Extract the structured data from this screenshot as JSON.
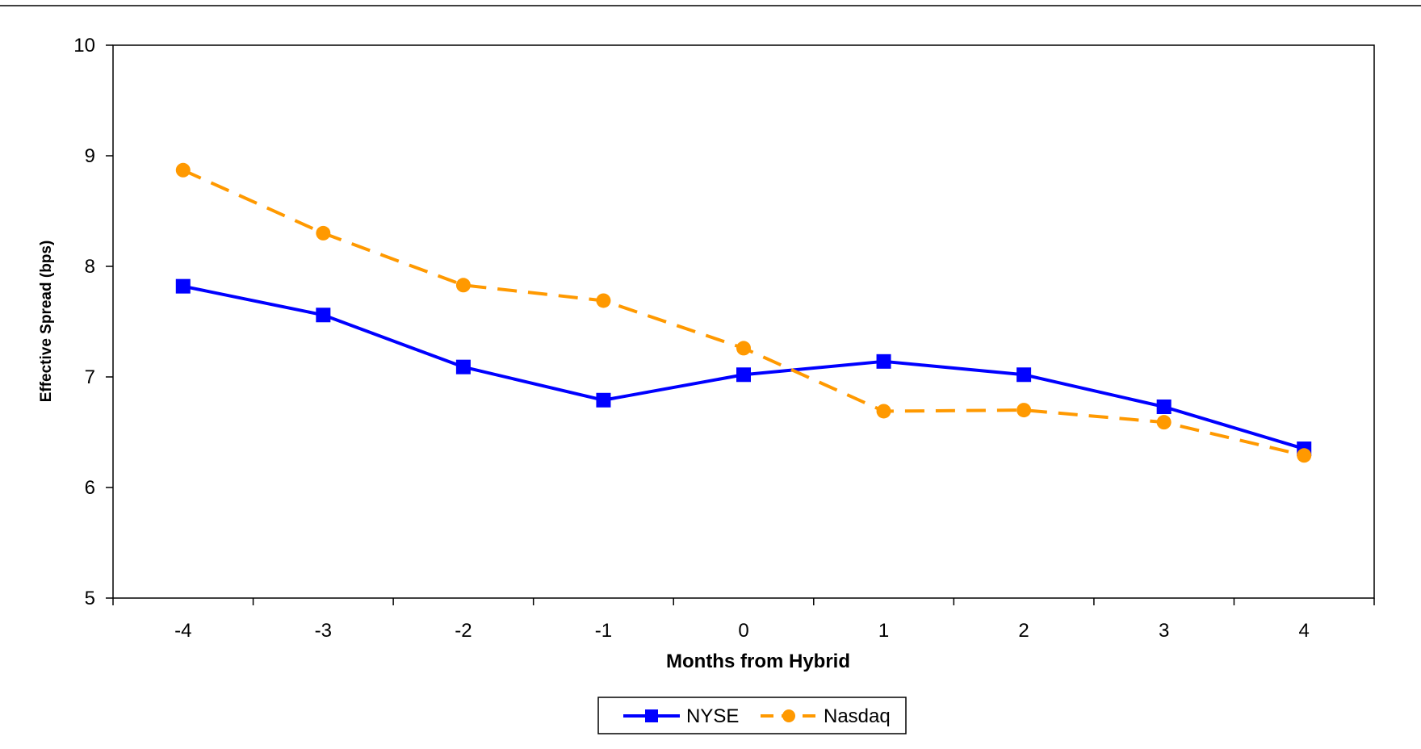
{
  "chart_data": {
    "type": "line",
    "title": "",
    "xlabel": "Months from Hybrid",
    "ylabel": "Effective Spread (bps)",
    "x": [
      -4,
      -3,
      -2,
      -1,
      0,
      1,
      2,
      3,
      4
    ],
    "x_tick_labels": [
      "-4",
      "-3",
      "-2",
      "-1",
      "0",
      "1",
      "2",
      "3",
      "4"
    ],
    "ylim": [
      5,
      10
    ],
    "y_ticks": [
      5,
      6,
      7,
      8,
      9,
      10
    ],
    "y_tick_labels": [
      "5",
      "6",
      "7",
      "8",
      "9",
      "10"
    ],
    "grid": false,
    "legend_position": "bottom-center",
    "series": [
      {
        "name": "NYSE",
        "color": "#0000ff",
        "marker": "square",
        "line_style": "solid",
        "values": [
          7.82,
          7.56,
          7.09,
          6.79,
          7.02,
          7.14,
          7.02,
          6.73,
          6.35
        ]
      },
      {
        "name": "Nasdaq",
        "color": "#ff9900",
        "marker": "circle",
        "line_style": "dashed",
        "values": [
          8.87,
          8.3,
          7.83,
          7.69,
          7.26,
          6.69,
          6.7,
          6.59,
          6.29
        ]
      }
    ]
  }
}
